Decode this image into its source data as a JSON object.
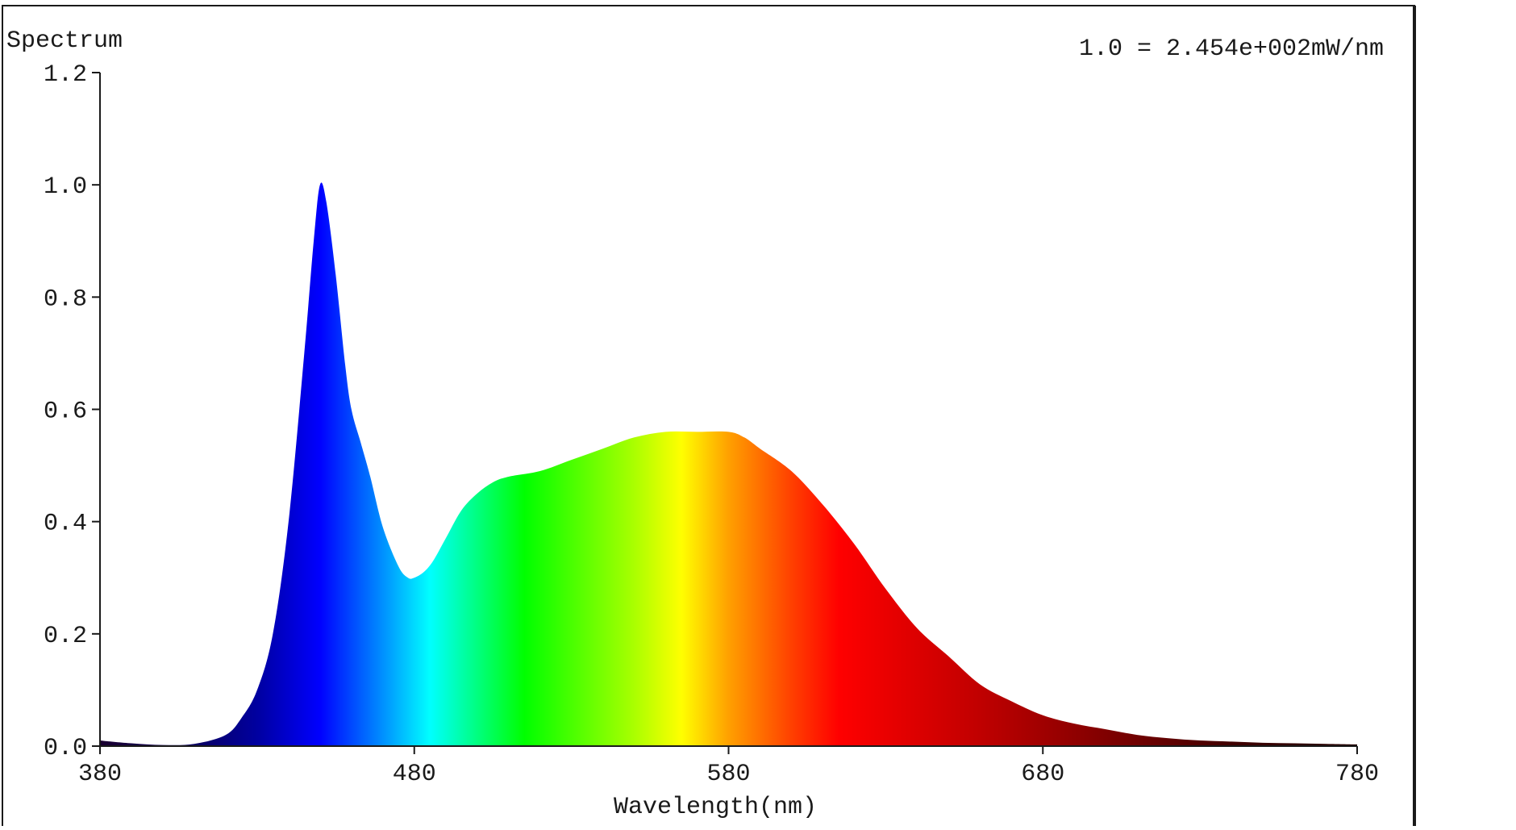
{
  "chart_data": {
    "type": "area",
    "title": "Spectrum",
    "scale_note": "1.0 = 2.454e+002mW/nm",
    "xlabel": "Wavelength(nm)",
    "ylabel": "",
    "xlim": [
      380,
      780
    ],
    "ylim": [
      0,
      1.2
    ],
    "x_ticks": [
      "380",
      "480",
      "580",
      "680",
      "780"
    ],
    "y_ticks": [
      "0.0",
      "0.2",
      "0.4",
      "0.6",
      "0.8",
      "1.0",
      "1.2"
    ],
    "grid": false,
    "series": [
      {
        "x": [
          380,
          390,
          400,
          410,
          420,
          425,
          430,
          435,
          440,
          445,
          448,
          450,
          452,
          455,
          458,
          460,
          463,
          466,
          470,
          475,
          478,
          480,
          483,
          486,
          490,
          495,
          500,
          505,
          510,
          520,
          530,
          540,
          550,
          560,
          570,
          580,
          585,
          590,
          600,
          610,
          620,
          630,
          640,
          650,
          660,
          670,
          680,
          690,
          700,
          710,
          720,
          730,
          740,
          750,
          760,
          770,
          780
        ],
        "y": [
          0.01,
          0.005,
          0.002,
          0.004,
          0.02,
          0.05,
          0.1,
          0.2,
          0.4,
          0.7,
          0.9,
          1.0,
          0.97,
          0.84,
          0.68,
          0.6,
          0.54,
          0.48,
          0.39,
          0.32,
          0.3,
          0.3,
          0.31,
          0.33,
          0.37,
          0.42,
          0.45,
          0.47,
          0.48,
          0.49,
          0.51,
          0.53,
          0.55,
          0.56,
          0.56,
          0.56,
          0.55,
          0.53,
          0.49,
          0.43,
          0.36,
          0.28,
          0.21,
          0.16,
          0.11,
          0.08,
          0.055,
          0.04,
          0.03,
          0.02,
          0.014,
          0.01,
          0.008,
          0.006,
          0.005,
          0.004,
          0.003
        ]
      }
    ],
    "colors": {
      "axis": "#1a1a1a",
      "frame": "#1a1a1a",
      "gradient": [
        {
          "nm": 380,
          "color": "#1a0030"
        },
        {
          "nm": 410,
          "color": "#0a0060"
        },
        {
          "nm": 430,
          "color": "#0000a0"
        },
        {
          "nm": 450,
          "color": "#0000ff"
        },
        {
          "nm": 470,
          "color": "#0090ff"
        },
        {
          "nm": 485,
          "color": "#00ffff"
        },
        {
          "nm": 500,
          "color": "#00ff80"
        },
        {
          "nm": 515,
          "color": "#00ff00"
        },
        {
          "nm": 550,
          "color": "#aaff00"
        },
        {
          "nm": 565,
          "color": "#ffff00"
        },
        {
          "nm": 580,
          "color": "#ffa000"
        },
        {
          "nm": 600,
          "color": "#ff4000"
        },
        {
          "nm": 615,
          "color": "#ff0000"
        },
        {
          "nm": 660,
          "color": "#c00000"
        },
        {
          "nm": 700,
          "color": "#800000"
        },
        {
          "nm": 740,
          "color": "#400000"
        },
        {
          "nm": 780,
          "color": "#200000"
        }
      ]
    }
  }
}
